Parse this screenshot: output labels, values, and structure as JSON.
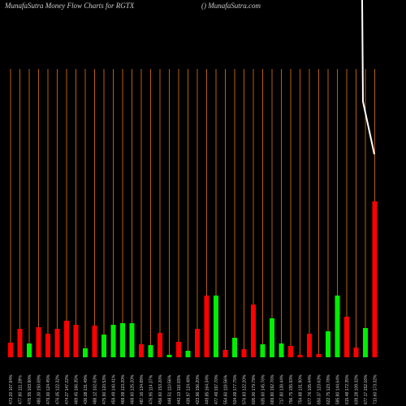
{
  "chart_data": {
    "type": "bar",
    "title": "MunafaSutra  Money Flow  Charts for RGTX",
    "subtitle": "() MunafaSutra.com",
    "categories": [
      "473.20 107.94%",
      "477.80 111.28%",
      "476.55 103.90%",
      "480.30 150.69%",
      "479.00 124.45%",
      "476.05 122.32%",
      "474.27 147.22%",
      "469.45 166.35%",
      "436.08 131.49%",
      "488.12 102.63%",
      "475.90 120.53%",
      "459.49 140.41%",
      "468.09 123.20%",
      "468.60 125.20%",
      "487.16 134.89%",
      "476.95 114.37%",
      "456.60 153.20%",
      "448.51 110.56%",
      "443.13 116.93%",
      "439.97 124.48%",
      "423.96 156.20%",
      "449.85 164.34%",
      "477.49 197.70%",
      "554.60 118.56%",
      "534.09 177.75%",
      "576.83 122.20%",
      "605.00 179.79%",
      "635.60 145.76%",
      "669.80 192.76%",
      "717.80 138.44%",
      "756.75 155.93%",
      "754.88 131.90%",
      "677.76 105.44%",
      "650.37 123.63%",
      "622.75 123.78%",
      "595.80 144.64%",
      "615.48 172.35%",
      "639.28 109.32%",
      "677.17 152.16%",
      "713.60 173.32%"
    ],
    "values": [
      18,
      35,
      17,
      37,
      29,
      35,
      45,
      40,
      11,
      39,
      28,
      40,
      42,
      42,
      16,
      15,
      30,
      3,
      19,
      8,
      35,
      76,
      76,
      9,
      24,
      10,
      65,
      16,
      48,
      17,
      14,
      3,
      29,
      4,
      32,
      76,
      50,
      12,
      36,
      192
    ],
    "colors": [
      "red",
      "red",
      "green",
      "red",
      "red",
      "red",
      "red",
      "red",
      "green",
      "red",
      "green",
      "green",
      "green",
      "green",
      "red",
      "green",
      "red",
      "green",
      "red",
      "green",
      "red",
      "red",
      "green",
      "red",
      "green",
      "red",
      "red",
      "green",
      "green",
      "green",
      "red",
      "red",
      "red",
      "red",
      "green",
      "green",
      "red",
      "red",
      "green",
      "red"
    ],
    "ylim": [
      0,
      355
    ]
  }
}
